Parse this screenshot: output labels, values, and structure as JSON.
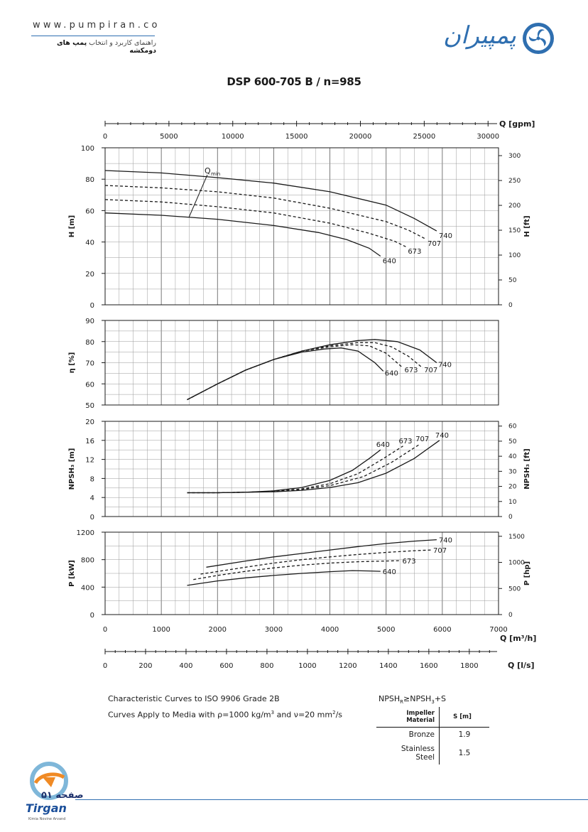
{
  "header": {
    "url": "www.pumpiran.co",
    "tagline_pre": "راهنمای کاربرد و انتخاب",
    "tagline_bold": "پمپ های دومکشه",
    "brand_name": "پمپیران"
  },
  "title": "DSP 600-705 B / n=985",
  "colors": {
    "curve": "#1a1a1a",
    "grid": "#9a9a9a",
    "brand": "#2f6fb0"
  },
  "chart_data": {
    "type": "line",
    "impellers": [
      "640",
      "673",
      "707",
      "740"
    ],
    "top_axis": {
      "label": "Q [gpm]",
      "ticks": [
        0,
        5000,
        10000,
        15000,
        20000,
        25000,
        30000
      ]
    },
    "bottom_axes": [
      {
        "label": "Q [m³/h]",
        "range": [
          0,
          7000
        ],
        "ticks": [
          0,
          1000,
          2000,
          3000,
          4000,
          5000,
          6000,
          7000
        ]
      },
      {
        "label": "Q [l/s]",
        "ticks": [
          0,
          200,
          400,
          600,
          800,
          1000,
          1200,
          1400,
          1600,
          1800
        ]
      }
    ],
    "panels": [
      {
        "id": "head",
        "ylabel": "H [m]",
        "ylabel_right": "H [ft]",
        "ylim": [
          0,
          100
        ],
        "yticks": [
          0,
          20,
          40,
          60,
          80,
          100
        ],
        "right_ticks": [
          0,
          50,
          100,
          150,
          200,
          250,
          300
        ],
        "annotation": "Qmin",
        "series": [
          {
            "name": "740",
            "dash": false,
            "x": [
              0,
              1000,
              2000,
              3000,
              4000,
              5000,
              5500,
              5900
            ],
            "y": [
              85.5,
              84,
              81,
              77.5,
              72,
              63.5,
              55,
              47
            ]
          },
          {
            "name": "707",
            "dash": true,
            "x": [
              0,
              1000,
              2000,
              3000,
              4000,
              5000,
              5400,
              5700
            ],
            "y": [
              76,
              74.5,
              72,
              68,
              61.5,
              53,
              47.5,
              42
            ]
          },
          {
            "name": "673",
            "dash": true,
            "x": [
              0,
              1000,
              2000,
              3000,
              4000,
              4700,
              5150,
              5350
            ],
            "y": [
              67,
              65.5,
              62.5,
              58.5,
              52,
              45.5,
              40.5,
              37
            ]
          },
          {
            "name": "640",
            "dash": false,
            "x": [
              0,
              1000,
              2000,
              3000,
              3800,
              4300,
              4700,
              4900
            ],
            "y": [
              58.5,
              57,
              54.5,
              50.5,
              46,
              41.5,
              36,
              31
            ]
          }
        ]
      },
      {
        "id": "efficiency",
        "ylabel": "η [%]",
        "ylim": [
          50,
          90
        ],
        "yticks": [
          50,
          60,
          70,
          80,
          90
        ],
        "series": [
          {
            "name": "740",
            "dash": false,
            "x": [
              1460,
              2000,
              2500,
              3000,
              3500,
              4000,
              4500,
              4800,
              5200,
              5600,
              5900
            ],
            "y": [
              52.5,
              60,
              66.5,
              71.5,
              75.5,
              78.5,
              80.5,
              81,
              80,
              76,
              70
            ]
          },
          {
            "name": "707",
            "dash": true,
            "x": [
              1460,
              2000,
              2500,
              3000,
              3500,
              4000,
              4500,
              4800,
              5100,
              5400,
              5650
            ],
            "y": [
              52.5,
              60,
              66.5,
              71.5,
              75.5,
              78,
              79.5,
              79.5,
              77.5,
              73,
              67.5
            ]
          },
          {
            "name": "673",
            "dash": true,
            "x": [
              1460,
              2000,
              2500,
              3000,
              3500,
              4000,
              4400,
              4700,
              5000,
              5300
            ],
            "y": [
              52.5,
              60,
              66.5,
              71.5,
              75.5,
              77.5,
              78.5,
              78,
              74.5,
              67.5
            ]
          },
          {
            "name": "640",
            "dash": false,
            "x": [
              1460,
              2000,
              2500,
              3000,
              3500,
              3900,
              4200,
              4500,
              4800,
              4950
            ],
            "y": [
              52.5,
              60,
              66.5,
              71.5,
              75,
              76.5,
              77,
              75.5,
              70,
              66
            ]
          }
        ]
      },
      {
        "id": "npsh",
        "ylabel": "NPSH₃ [m]",
        "ylabel_right": "NPSH₃ [ft]",
        "ylim": [
          0,
          20
        ],
        "yticks": [
          0,
          4,
          8,
          12,
          16,
          20
        ],
        "right_ticks": [
          0,
          10,
          20,
          30,
          40,
          50,
          60
        ],
        "series": [
          {
            "name": "640",
            "dash": false,
            "x": [
              1460,
              2000,
              2500,
              3000,
              3500,
              4000,
              4400,
              4700,
              4900
            ],
            "y": [
              5,
              5,
              5.1,
              5.4,
              6.1,
              7.6,
              9.7,
              12.2,
              14
            ]
          },
          {
            "name": "673",
            "dash": true,
            "x": [
              1460,
              2000,
              2500,
              3000,
              3500,
              4000,
              4500,
              4900,
              5300
            ],
            "y": [
              5,
              5,
              5.1,
              5.3,
              5.8,
              6.9,
              9,
              11.8,
              14.8
            ]
          },
          {
            "name": "707",
            "dash": true,
            "x": [
              1460,
              2000,
              2500,
              3000,
              3500,
              4000,
              4600,
              5100,
              5600
            ],
            "y": [
              5,
              5,
              5.1,
              5.3,
              5.7,
              6.5,
              8.4,
              11.4,
              15.2
            ]
          },
          {
            "name": "740",
            "dash": false,
            "x": [
              1460,
              2000,
              2500,
              3000,
              3500,
              4000,
              4500,
              5000,
              5500,
              5950
            ],
            "y": [
              5,
              5,
              5.1,
              5.2,
              5.5,
              6.1,
              7.1,
              9.1,
              12.2,
              16
            ]
          }
        ]
      },
      {
        "id": "power",
        "ylabel": "P [kW]",
        "ylabel_right": "P [hp]",
        "ylim": [
          0,
          1200
        ],
        "yticks": [
          0,
          400,
          800,
          1200
        ],
        "right_ticks": [
          0,
          500,
          1000,
          1500
        ],
        "series": [
          {
            "name": "740",
            "dash": false,
            "x": [
              1800,
              2500,
              3000,
              3500,
              4000,
              4500,
              5000,
              5500,
              5900
            ],
            "y": [
              690,
              780,
              840,
              890,
              940,
              990,
              1035,
              1070,
              1090
            ]
          },
          {
            "name": "707",
            "dash": true,
            "x": [
              1700,
              2500,
              3000,
              3500,
              4000,
              4500,
              5000,
              5500,
              5800
            ],
            "y": [
              590,
              690,
              750,
              800,
              840,
              875,
              905,
              930,
              940
            ]
          },
          {
            "name": "673",
            "dash": true,
            "x": [
              1570,
              2000,
              2500,
              3000,
              3500,
              4000,
              4500,
              5000,
              5250
            ],
            "y": [
              510,
              570,
              630,
              680,
              720,
              750,
              770,
              780,
              785
            ]
          },
          {
            "name": "640",
            "dash": false,
            "x": [
              1460,
              2000,
              2500,
              3000,
              3500,
              4000,
              4400,
              4700,
              4900
            ],
            "y": [
              425,
              490,
              535,
              570,
              600,
              625,
              640,
              635,
              630
            ]
          }
        ]
      }
    ]
  },
  "notes": {
    "line1": "Characteristic Curves to ISO 9906 Grade 2B",
    "line2_pre": "Curves Apply to Media with",
    "line2_rho": "ρ=1000 kg/m",
    "line2_mid": "and",
    "line2_nu": "ν=20 mm",
    "line2_end": "/s"
  },
  "npsh_table": {
    "formula_a": "NPSH",
    "formula_a_sub": "R",
    "formula_mid": "≥NPSH",
    "formula_b_sub": "3",
    "formula_end": "+S",
    "col1": "Impeller Material",
    "col2": "S [m]",
    "rows": [
      {
        "material": "Bronze",
        "s": "1.9"
      },
      {
        "material": "Stainless Steel",
        "s": "1.5"
      }
    ]
  },
  "footer": {
    "page_label": "صفحه ۵۱",
    "company": "Tirgan",
    "company_sub": "Kimia Novine Arvand"
  }
}
